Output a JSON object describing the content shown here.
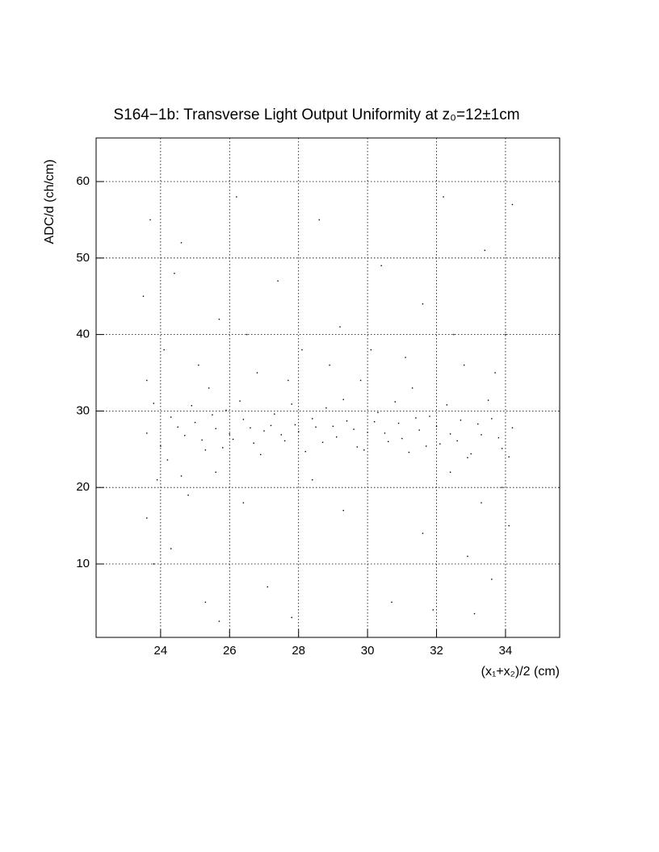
{
  "chart_data": {
    "type": "scatter",
    "title": "S164−1b: Transverse Light Output Uniformity at z₀=12±1cm",
    "x_label": "(x₁+x₂)/2 (cm)",
    "y_label": "ADC/d (ch/cm)",
    "xlim": [
      22.13,
      35.57
    ],
    "ylim": [
      0.4,
      65.7
    ],
    "xticks": [
      24,
      26,
      28,
      30,
      32,
      34
    ],
    "yticks": [
      10,
      20,
      30,
      40,
      50,
      60
    ],
    "grid": true,
    "color": "#000000",
    "x": [
      23.6,
      24.0,
      24.3,
      24.7,
      25.0,
      25.3,
      25.6,
      25.9,
      26.1,
      26.4,
      26.7,
      27.0,
      27.3,
      27.6,
      27.9,
      28.2,
      28.5,
      28.8,
      29.1,
      29.4,
      29.7,
      30.0,
      30.3,
      30.6,
      30.9,
      31.2,
      31.5,
      31.8,
      32.1,
      32.4,
      32.7,
      33.0,
      33.3,
      33.6,
      33.9,
      34.2,
      23.8,
      24.2,
      24.5,
      24.9,
      25.2,
      25.5,
      25.8,
      26.0,
      26.3,
      26.6,
      26.9,
      27.2,
      27.5,
      27.8,
      28.0,
      28.4,
      28.7,
      29.0,
      29.3,
      29.6,
      29.9,
      30.2,
      30.5,
      30.8,
      31.0,
      31.4,
      31.7,
      32.0,
      32.3,
      32.6,
      32.9,
      33.2,
      33.5,
      33.8,
      34.1,
      23.5,
      23.7,
      24.1,
      24.6,
      25.1,
      25.7,
      26.2,
      26.8,
      27.4,
      28.1,
      28.6,
      29.2,
      29.8,
      30.4,
      31.1,
      31.6,
      32.2,
      32.8,
      33.4,
      34.0,
      23.6,
      24.4,
      25.4,
      26.5,
      27.7,
      28.9,
      30.1,
      31.3,
      32.5,
      33.7,
      34.2,
      23.6,
      23.9,
      24.3,
      24.8,
      25.3,
      25.6,
      26.4,
      27.1,
      28.4,
      29.3,
      30.7,
      31.6,
      32.4,
      32.9,
      33.3,
      33.6,
      33.9,
      34.1,
      25.7,
      27.8,
      31.9,
      33.1,
      23.8,
      24.6
    ],
    "values": [
      27.1,
      25.4,
      29.2,
      26.8,
      28.5,
      24.9,
      27.7,
      30.1,
      26.3,
      28.9,
      25.8,
      27.4,
      29.6,
      26.1,
      28.2,
      24.7,
      27.9,
      30.4,
      26.6,
      28.7,
      25.3,
      27.2,
      29.8,
      26.0,
      28.4,
      24.6,
      27.5,
      29.3,
      25.7,
      27.0,
      28.8,
      24.4,
      26.9,
      29.0,
      25.1,
      27.8,
      31.0,
      23.6,
      27.9,
      30.7,
      26.2,
      29.5,
      25.2,
      27.0,
      31.3,
      27.8,
      24.3,
      28.1,
      26.9,
      30.9,
      27.3,
      29.0,
      25.9,
      28.0,
      31.5,
      27.6,
      24.9,
      28.6,
      27.1,
      31.2,
      26.4,
      29.1,
      25.4,
      28.0,
      30.8,
      26.1,
      23.9,
      28.3,
      31.4,
      26.5,
      24.0,
      45,
      55,
      38,
      52,
      36,
      42,
      58,
      35,
      47,
      38,
      55,
      41,
      34,
      49,
      37,
      44,
      58,
      36,
      51,
      40,
      34,
      48,
      33,
      40,
      34,
      36,
      38,
      33,
      40,
      35,
      57,
      16,
      21,
      12,
      19,
      5,
      22,
      18,
      7,
      21,
      17,
      5,
      14,
      22,
      11,
      18,
      8,
      20,
      15,
      2.5,
      3,
      4,
      3.5,
      10,
      21.5
    ]
  }
}
